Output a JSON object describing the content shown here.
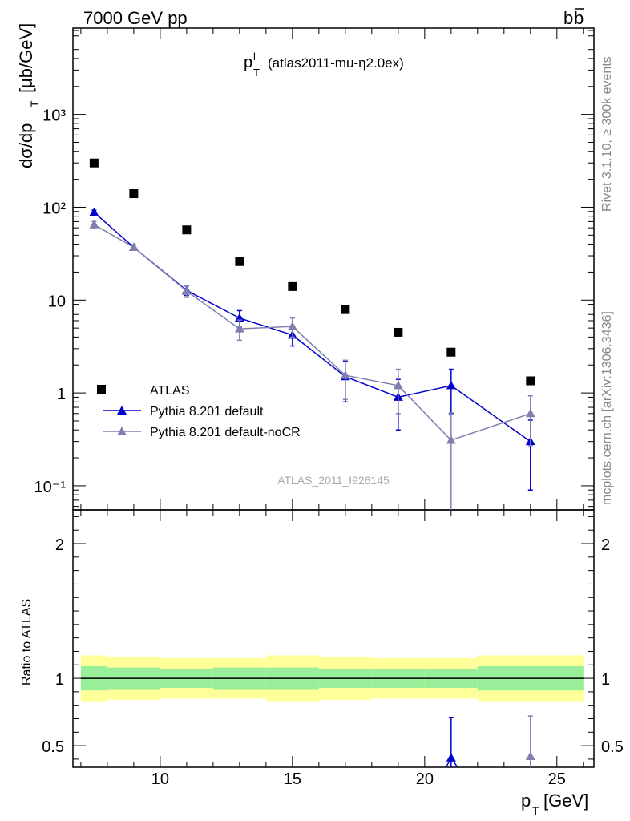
{
  "header": {
    "left": "7000 GeV pp",
    "right_main": "b",
    "right_bar": "b"
  },
  "plot_title": {
    "main": "p",
    "sup": "l",
    "sub": "T",
    "rest": "(atlas2011-mu-η2.0ex)"
  },
  "side_labels": {
    "rivet": "Rivet 3.1.10, ≥ 300k events",
    "mcplots": "mcplots.cern.ch [arXiv:1306.3436]"
  },
  "watermark": "ATLAS_2011_I926145",
  "axes": {
    "ylabel_main": "dσ/dp",
    "ylabel_main_sub": "T",
    "ylabel_main_unit": "[μb/GeV]",
    "ylabel_ratio": "Ratio to ATLAS",
    "xlabel": "p",
    "xlabel_sub": "T",
    "xlabel_unit": "[GeV]"
  },
  "legend": [
    {
      "label": "ATLAS",
      "color": "#000000",
      "marker": "square"
    },
    {
      "label": "Pythia 8.201 default",
      "color": "#0000cc",
      "marker": "triangle"
    },
    {
      "label": "Pythia 8.201 default-noCR",
      "color": "#8080b0",
      "marker": "triangle"
    }
  ],
  "chart_data": [
    {
      "type": "scatter",
      "panel": "main",
      "yscale": "log",
      "xlim": [
        6.7,
        26.4
      ],
      "ylim": [
        0.055,
        8500
      ],
      "y_tick_labels": [
        "10⁻¹",
        "1",
        "10",
        "10²",
        "10³"
      ],
      "x_tick_labels": [
        "10",
        "15",
        "20",
        "25"
      ],
      "series": [
        {
          "name": "ATLAS",
          "color": "#000000",
          "x": [
            7.5,
            9,
            11,
            13,
            15,
            17,
            19,
            21,
            24
          ],
          "y": [
            300,
            140,
            57,
            26,
            14,
            7.9,
            4.5,
            2.75,
            1.35
          ]
        },
        {
          "name": "Pythia 8.201 default",
          "color": "#0000cc",
          "x": [
            7.5,
            9,
            11,
            13,
            15,
            17,
            19,
            21,
            24
          ],
          "y": [
            88,
            37,
            12.7,
            6.4,
            4.2,
            1.5,
            0.9,
            1.2,
            0.3
          ],
          "err": [
            5,
            2.5,
            1.5,
            1.3,
            1.0,
            0.7,
            0.5,
            0.6,
            0.21
          ]
        },
        {
          "name": "Pythia 8.201 default-noCR",
          "color": "#8080b0",
          "x": [
            7.5,
            9,
            11,
            13,
            15,
            17,
            19,
            21,
            24
          ],
          "y": [
            65,
            37,
            12.5,
            4.9,
            5.2,
            1.55,
            1.2,
            0.31,
            0.6
          ],
          "err": [
            5,
            2.5,
            1.8,
            1.2,
            1.2,
            0.7,
            0.6,
            0.3,
            0.33
          ]
        }
      ]
    },
    {
      "type": "scatter",
      "panel": "ratio",
      "yscale": "linear",
      "xlim": [
        6.7,
        26.4
      ],
      "ylim": [
        0.34,
        2.25
      ],
      "y_tick_labels": [
        "0.5",
        "1",
        "2"
      ],
      "bands": {
        "edges": [
          7,
          8,
          10,
          12,
          14,
          16,
          18,
          20,
          22,
          26
        ],
        "outer": [
          0.17,
          0.16,
          0.15,
          0.15,
          0.17,
          0.16,
          0.15,
          0.15,
          0.17
        ],
        "inner": [
          0.09,
          0.08,
          0.07,
          0.08,
          0.08,
          0.07,
          0.07,
          0.07,
          0.09
        ],
        "outer_color": "#ffff99",
        "inner_color": "#99ee99"
      },
      "series": [
        {
          "name": "Pythia 8.201 default",
          "color": "#0000cc",
          "x": [
            21
          ],
          "y": [
            0.41
          ],
          "err": [
            0.3
          ]
        },
        {
          "name": "Pythia 8.201 default-noCR",
          "color": "#8080b0",
          "x": [
            24
          ],
          "y": [
            0.42
          ],
          "err": [
            0.3
          ]
        }
      ]
    }
  ]
}
